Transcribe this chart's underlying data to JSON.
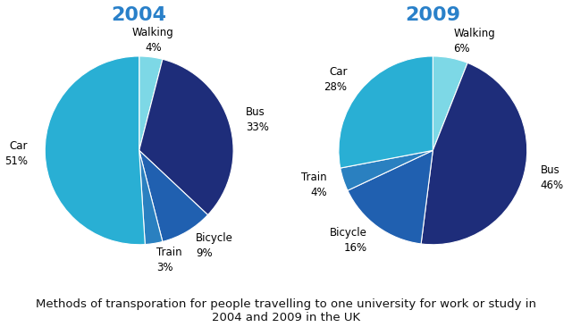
{
  "year_2004": {
    "title": "2004",
    "labels": [
      "Walking",
      "Bus",
      "Bicycle",
      "Train",
      "Car"
    ],
    "values": [
      4,
      33,
      9,
      3,
      51
    ],
    "colors": [
      "#7dd8e6",
      "#1e2d7a",
      "#2060b0",
      "#2a80c0",
      "#29afd4"
    ],
    "startangle": 90
  },
  "year_2009": {
    "title": "2009",
    "labels": [
      "Walking",
      "Bus",
      "Bicycle",
      "Train",
      "Car"
    ],
    "values": [
      6,
      46,
      16,
      4,
      28
    ],
    "colors": [
      "#7dd8e6",
      "#1e2d7a",
      "#2060b0",
      "#2a80c0",
      "#29afd4"
    ],
    "startangle": 90
  },
  "title_color": "#2980c9",
  "title_fontsize": 16,
  "label_fontsize": 8.5,
  "caption": "Methods of transporation for people travelling to one university for work or study in\n2004 and 2009 in the UK",
  "caption_fontsize": 9.5,
  "background_color": "#ffffff"
}
